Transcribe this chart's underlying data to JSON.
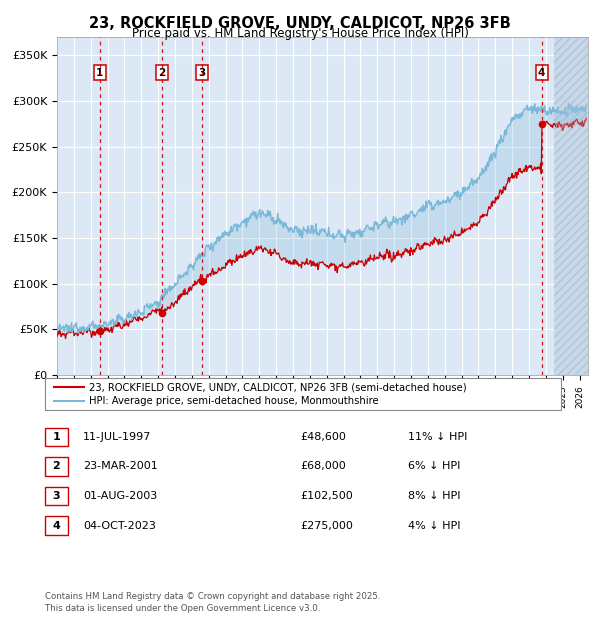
{
  "title": "23, ROCKFIELD GROVE, UNDY, CALDICOT, NP26 3FB",
  "subtitle": "Price paid vs. HM Land Registry's House Price Index (HPI)",
  "purchases": [
    {
      "label": "1",
      "date_num": 1997.53,
      "price": 48600
    },
    {
      "label": "2",
      "date_num": 2001.23,
      "price": 68000
    },
    {
      "label": "3",
      "date_num": 2003.58,
      "price": 102500
    },
    {
      "label": "4",
      "date_num": 2023.75,
      "price": 275000
    }
  ],
  "legend_entry1": "23, ROCKFIELD GROVE, UNDY, CALDICOT, NP26 3FB (semi-detached house)",
  "legend_entry2": "HPI: Average price, semi-detached house, Monmouthshire",
  "table_rows": [
    {
      "num": "1",
      "date": "11-JUL-1997",
      "price": "£48,600",
      "hpi": "11% ↓ HPI"
    },
    {
      "num": "2",
      "date": "23-MAR-2001",
      "price": "£68,000",
      "hpi": "6% ↓ HPI"
    },
    {
      "num": "3",
      "date": "01-AUG-2003",
      "price": "£102,500",
      "hpi": "8% ↓ HPI"
    },
    {
      "num": "4",
      "date": "04-OCT-2023",
      "price": "£275,000",
      "hpi": "4% ↓ HPI"
    }
  ],
  "footer": "Contains HM Land Registry data © Crown copyright and database right 2025.\nThis data is licensed under the Open Government Licence v3.0.",
  "hpi_color": "#7ab8d8",
  "price_color": "#cc0000",
  "plot_bg": "#dce8f5",
  "grid_color": "#ffffff",
  "dashed_color": "#cc0000",
  "ylim": [
    0,
    370000
  ],
  "yticks": [
    0,
    50000,
    100000,
    150000,
    200000,
    250000,
    300000,
    350000
  ],
  "ylabels": [
    "£0",
    "£50K",
    "£100K",
    "£150K",
    "£200K",
    "£250K",
    "£300K",
    "£350K"
  ],
  "xlim_start": 1995.0,
  "xlim_end": 2026.5
}
